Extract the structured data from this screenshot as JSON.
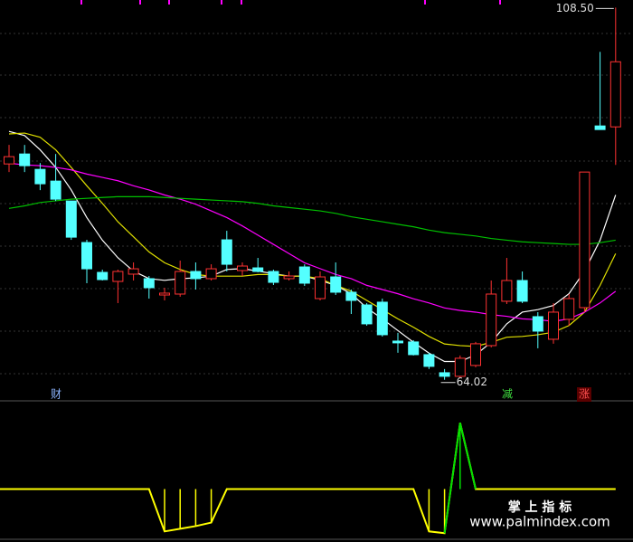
{
  "chart_data": [
    {
      "type": "candlestick",
      "open": [
        89.81,
        91.0,
        89.16,
        87.76,
        85.38,
        80.42,
        76.85,
        75.77,
        76.64,
        76.1,
        74.15,
        74.26,
        76.96,
        76.1,
        80.74,
        77.07,
        77.39,
        76.96,
        76.1,
        77.5,
        73.72,
        76.31,
        74.48,
        72.96,
        73.29,
        68.64,
        68.54,
        67.02,
        64.86,
        64.43,
        65.73,
        68.1,
        73.4,
        75.88,
        71.56,
        68.86,
        71.24,
        72.64,
        94.35,
        94.24
      ],
      "high": [
        92.08,
        92.08,
        89.92,
        91.0,
        85.38,
        80.74,
        77.18,
        77.18,
        78.04,
        76.42,
        75.02,
        78.26,
        78.04,
        77.82,
        81.82,
        78.04,
        78.58,
        77.18,
        76.96,
        77.82,
        76.96,
        78.04,
        74.8,
        73.18,
        73.72,
        69.62,
        68.75,
        67.24,
        65.3,
        66.92,
        68.54,
        75.88,
        78.58,
        76.96,
        72.1,
        73.18,
        74.26,
        88.84,
        103.2,
        108.5
      ],
      "low": [
        88.84,
        88.84,
        86.68,
        85.38,
        80.74,
        75.56,
        75.88,
        73.18,
        75.88,
        73.72,
        73.5,
        73.94,
        74.8,
        75.88,
        76.96,
        76.42,
        76.85,
        75.34,
        75.88,
        75.23,
        73.5,
        74.15,
        71.88,
        70.48,
        69.18,
        67.24,
        66.92,
        65.3,
        64.02,
        64.21,
        65.51,
        67.89,
        73.07,
        73.18,
        67.78,
        68.32,
        70.48,
        72.1,
        93.92,
        89.7
      ],
      "close": [
        90.68,
        89.6,
        87.44,
        85.6,
        81.06,
        77.28,
        75.99,
        76.96,
        77.28,
        75.02,
        74.37,
        76.96,
        76.1,
        77.28,
        77.82,
        77.61,
        76.96,
        75.66,
        76.42,
        75.56,
        76.31,
        74.48,
        73.5,
        70.7,
        69.4,
        68.43,
        67.02,
        65.62,
        64.43,
        66.59,
        68.32,
        74.26,
        75.88,
        73.4,
        69.83,
        72.1,
        73.72,
        88.84,
        93.92,
        102.02
      ],
      "up_color": "#ff3232",
      "down_color": "#54ffff",
      "ylim": [
        61.5,
        109.4
      ],
      "series": [
        {
          "color": "#ffffff",
          "values": [
            93.7,
            93.2,
            91.5,
            89.4,
            86.7,
            83.4,
            80.7,
            78.6,
            77.0,
            76.1,
            75.9,
            76.1,
            76.2,
            76.4,
            77.2,
            77.3,
            77.0,
            76.7,
            76.4,
            76.4,
            75.9,
            75.3,
            74.3,
            72.6,
            71.3,
            69.9,
            68.5,
            67.2,
            66.2,
            66.2,
            67.0,
            68.5,
            70.7,
            72.1,
            72.4,
            72.9,
            74.3,
            77.0,
            80.7,
            86.1
          ]
        },
        {
          "color": "#e0e000",
          "values": [
            93.4,
            93.5,
            93.0,
            91.5,
            89.4,
            87.2,
            85.1,
            82.9,
            81.1,
            79.3,
            78.0,
            77.2,
            76.6,
            76.4,
            76.4,
            76.4,
            76.6,
            76.6,
            76.4,
            76.4,
            76.1,
            75.3,
            74.6,
            73.5,
            72.4,
            71.3,
            70.3,
            69.2,
            68.3,
            68.1,
            68.0,
            68.5,
            69.1,
            69.2,
            69.4,
            69.7,
            70.5,
            72.1,
            75.3,
            79.1
          ]
        },
        {
          "color": "#ff00ff",
          "values": [
            89.9,
            89.7,
            89.6,
            89.4,
            89.1,
            88.6,
            88.2,
            87.8,
            87.2,
            86.7,
            86.1,
            85.6,
            85.0,
            84.2,
            83.4,
            82.4,
            81.3,
            80.2,
            79.1,
            78.0,
            77.3,
            76.6,
            76.1,
            75.3,
            74.8,
            74.3,
            73.7,
            73.2,
            72.6,
            72.3,
            72.1,
            71.8,
            71.6,
            71.3,
            71.2,
            71.0,
            71.3,
            72.1,
            73.2,
            74.6
          ]
        },
        {
          "color": "#00c000",
          "values": [
            84.5,
            84.8,
            85.2,
            85.4,
            85.6,
            85.7,
            85.8,
            85.9,
            85.9,
            85.9,
            85.8,
            85.7,
            85.6,
            85.5,
            85.4,
            85.3,
            85.1,
            84.8,
            84.6,
            84.4,
            84.2,
            83.9,
            83.5,
            83.2,
            82.9,
            82.6,
            82.3,
            81.9,
            81.6,
            81.4,
            81.2,
            80.9,
            80.7,
            80.5,
            80.4,
            80.3,
            80.2,
            80.2,
            80.4,
            80.7
          ]
        }
      ],
      "high_label": "108.50",
      "low_label": "64.02"
    },
    {
      "type": "line",
      "color": "#ffff00",
      "up_color": "#00e000",
      "values": [
        0,
        0,
        0,
        0,
        0,
        0,
        0,
        0,
        0,
        0,
        -48,
        -45,
        -42,
        -38,
        0,
        0,
        0,
        0,
        0,
        0,
        0,
        0,
        0,
        0,
        0,
        0,
        0,
        -48,
        -50,
        75,
        0,
        0,
        0,
        0,
        0,
        0,
        0,
        0,
        0,
        0
      ],
      "ylim": [
        -60,
        100
      ]
    }
  ],
  "signals": [
    "财",
    "减",
    "涨"
  ],
  "watermark": {
    "title": "掌 上 指 标",
    "url": "www.palmindex.com"
  }
}
